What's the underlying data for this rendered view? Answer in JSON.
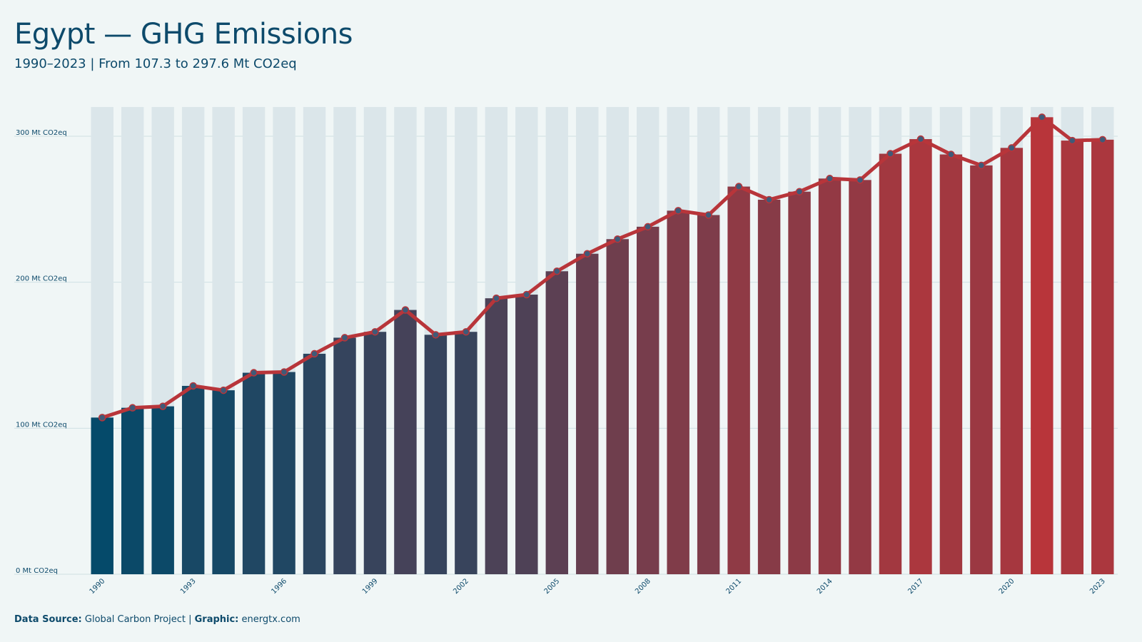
{
  "header": {
    "title": "Egypt — GHG Emissions",
    "subtitle": "1990–2023 | From 107.3 to 297.6 Mt CO2eq"
  },
  "footer": {
    "source_label": "Data Source:",
    "source_value": "Global Carbon Project |",
    "graphic_label": "Graphic:",
    "graphic_value": "energtx.com"
  },
  "chart_data": {
    "type": "bar",
    "categories": [
      "1990",
      "1991",
      "1992",
      "1993",
      "1994",
      "1995",
      "1996",
      "1997",
      "1998",
      "1999",
      "2000",
      "2001",
      "2002",
      "2003",
      "2004",
      "2005",
      "2006",
      "2007",
      "2008",
      "2009",
      "2010",
      "2011",
      "2012",
      "2013",
      "2014",
      "2015",
      "2016",
      "2017",
      "2018",
      "2019",
      "2020",
      "2021",
      "2022",
      "2023"
    ],
    "values": [
      107.3,
      114,
      115,
      129,
      126,
      138,
      138.5,
      151,
      162,
      166,
      181,
      164,
      166,
      189,
      191.5,
      207.5,
      219.5,
      229.5,
      238,
      249,
      246,
      265.5,
      256.5,
      262,
      271,
      270,
      288,
      298,
      287.5,
      280,
      292,
      313,
      297,
      297.6
    ],
    "line_overlay": true,
    "ylim": [
      0,
      320
    ],
    "yticks": [
      0,
      100,
      200,
      300
    ],
    "ytick_labels": [
      "0 Mt CO2eq",
      "100 Mt CO2eq",
      "200 Mt CO2eq",
      "300 Mt CO2eq"
    ],
    "xtick_labels": [
      "1990",
      "1993",
      "1996",
      "1999",
      "2002",
      "2005",
      "2008",
      "2011",
      "2014",
      "2017",
      "2020",
      "2023"
    ],
    "grid": true,
    "colors": {
      "bar_low": "#054a6a",
      "bar_high": "#b8353a",
      "line": "#b8353a",
      "marker_fill": "#3f5a78",
      "gridline": "#cfe0e3",
      "track": "#dbe6ea"
    }
  }
}
